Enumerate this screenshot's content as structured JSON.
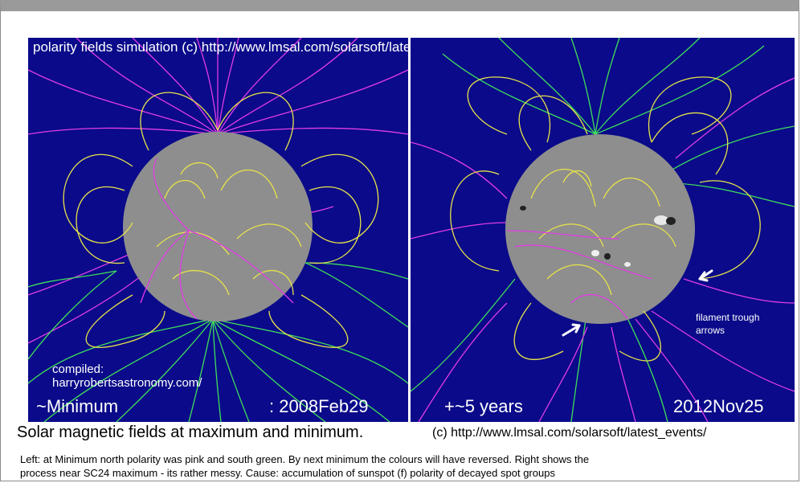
{
  "left_panel": {
    "credit": "polarity fields simulation (c) http://www.lmsal.com/solarsoft/latest_events/",
    "compiled": [
      "compiled:",
      "harryrobertsastronomy.com/"
    ],
    "label": "~Minimum",
    "date": ": 2008Feb29"
  },
  "right_panel": {
    "label": "+~5 years",
    "date": "2012Nov25",
    "annotation": [
      "filament trough",
      "arrows"
    ]
  },
  "caption": {
    "title": "Solar magnetic fields at maximum and minimum.",
    "url": "(c) http://www.lmsal.com/solarsoft/latest_events/"
  },
  "footnote": [
    "Left: at Minimum north polarity was pink and south green. By next minimum the colours will have reversed.  Right shows the",
    "process near SC24 maximum - its rather messy.     Cause: accumulation of sunspot (f) polarity of decayed spot groups"
  ],
  "colors": {
    "background": "#0a0a8a",
    "sun": "#8e8e8e",
    "north_field": "#e23ce6",
    "south_field": "#3fe05a",
    "closed_loops": "#e8e34a"
  }
}
